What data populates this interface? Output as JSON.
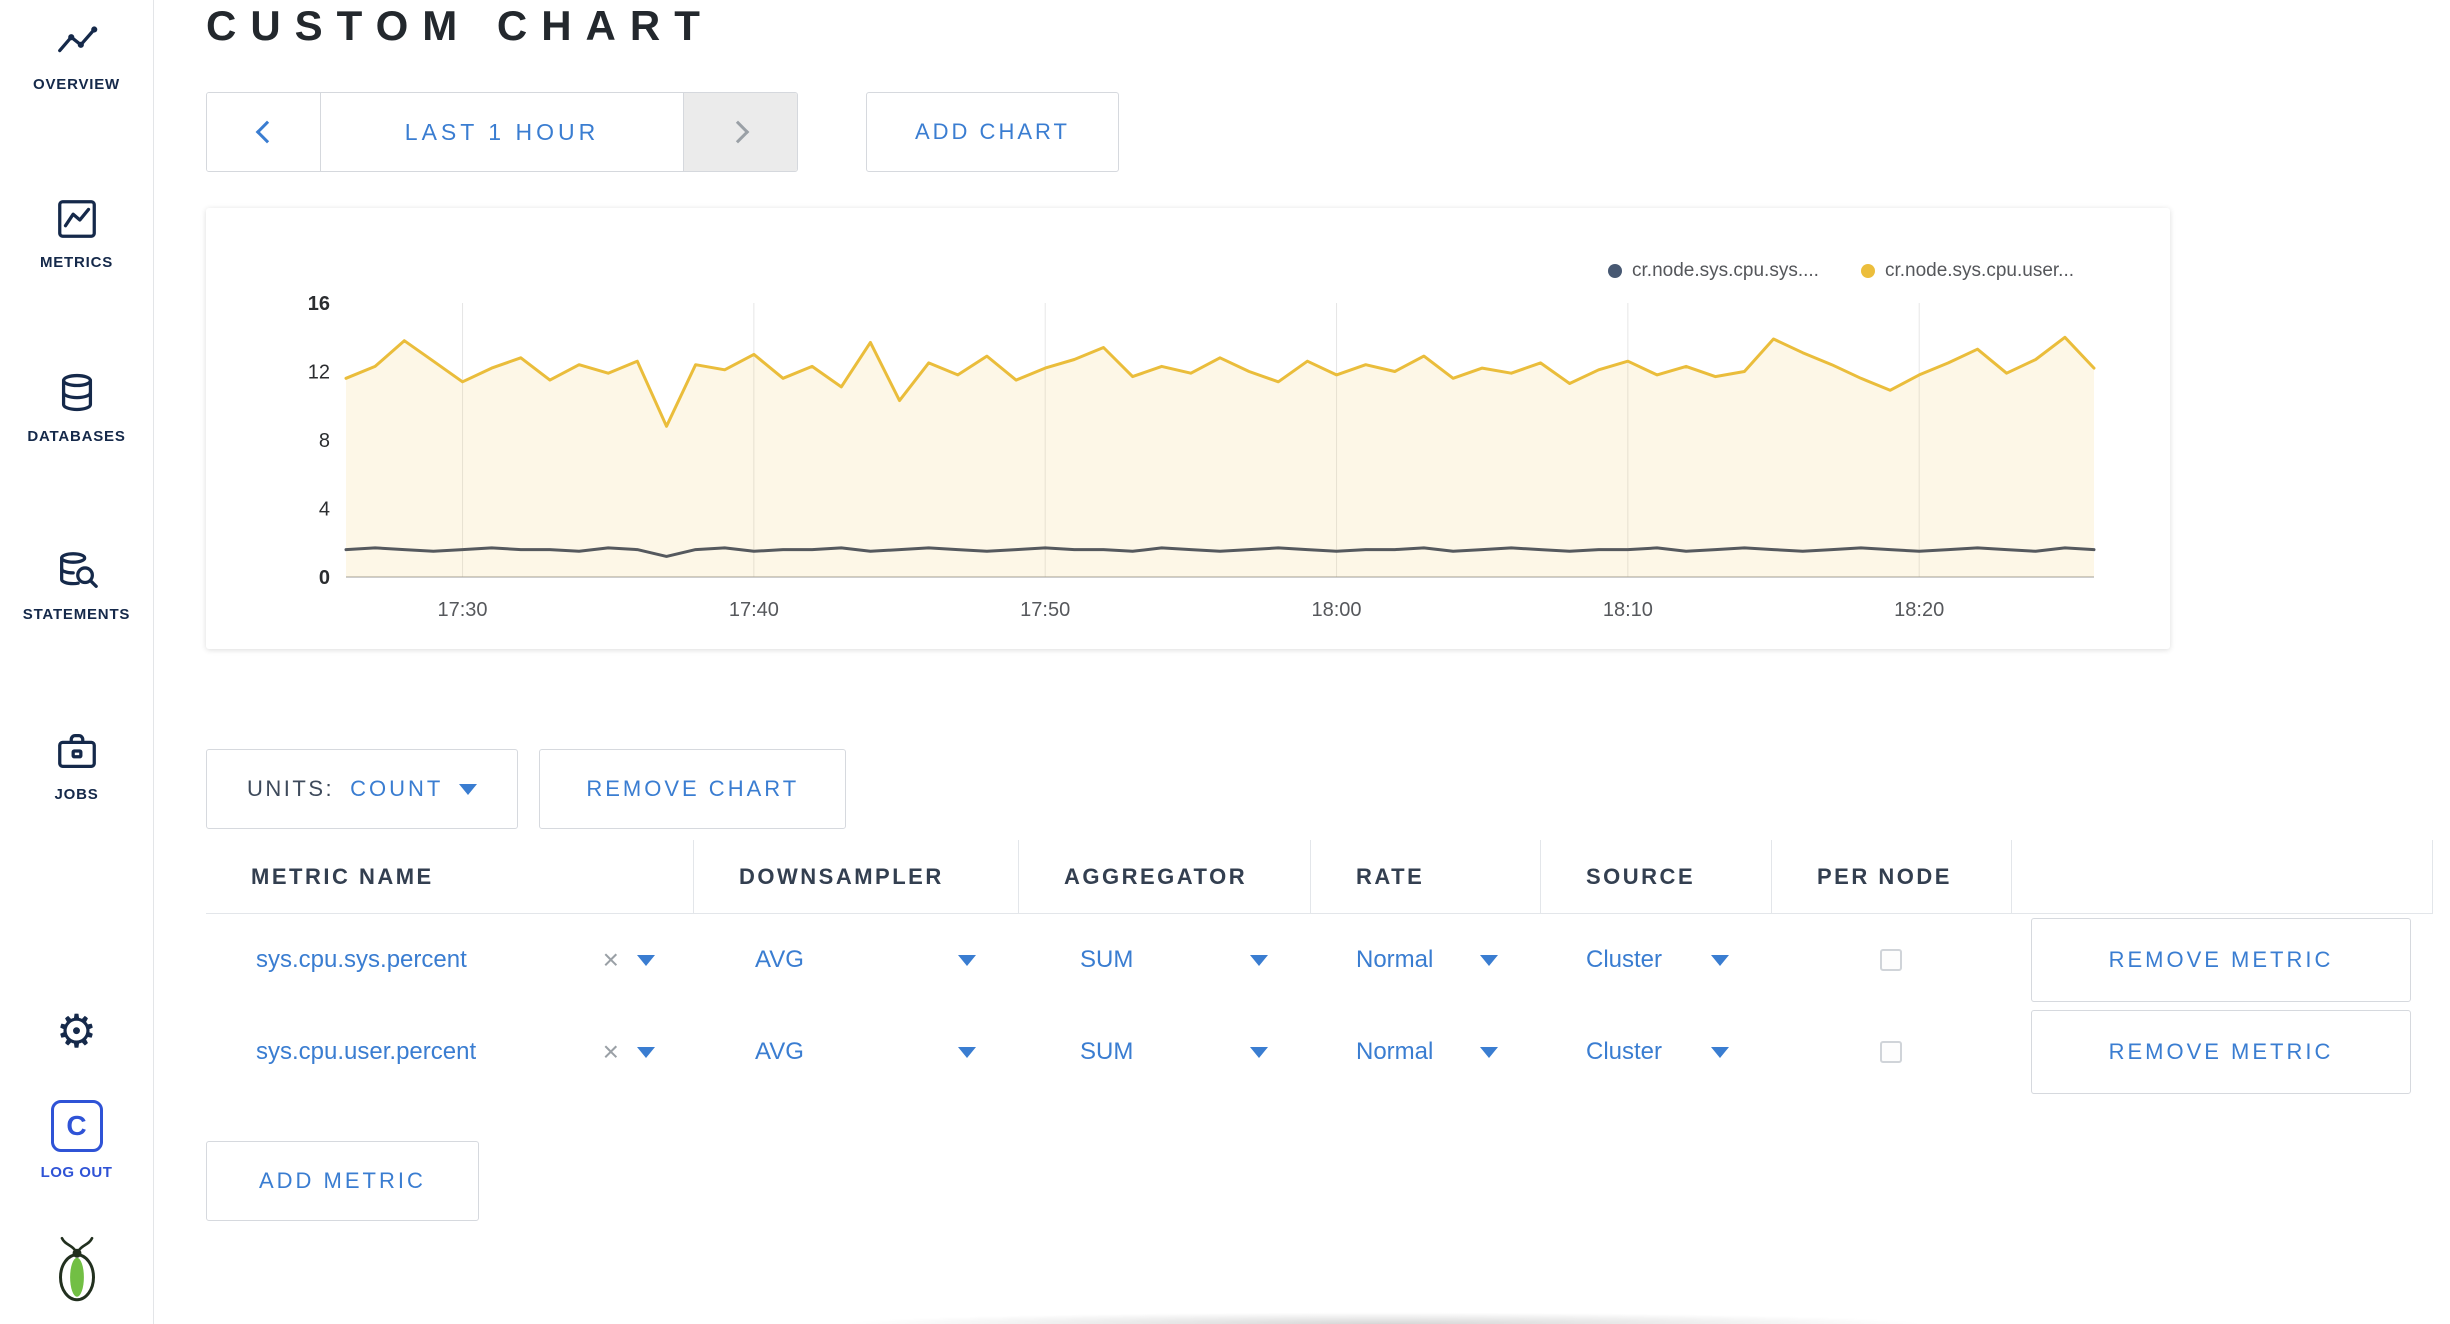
{
  "sidebar": {
    "items": [
      {
        "label": "OVERVIEW"
      },
      {
        "label": "METRICS"
      },
      {
        "label": "DATABASES"
      },
      {
        "label": "STATEMENTS"
      },
      {
        "label": "JOBS"
      }
    ],
    "logout": {
      "initial": "C",
      "label": "LOG OUT"
    }
  },
  "header": {
    "title": "CUSTOM CHART"
  },
  "timebar": {
    "range_label": "LAST 1 HOUR",
    "add_chart": "ADD CHART"
  },
  "icons": {
    "close": "×",
    "gear": "⚙"
  },
  "units": {
    "label": "UNITS:",
    "value": "COUNT"
  },
  "actions": {
    "remove_chart": "REMOVE CHART",
    "add_metric": "ADD METRIC",
    "remove_metric": "REMOVE METRIC"
  },
  "table": {
    "headers": [
      "METRIC NAME",
      "DOWNSAMPLER",
      "AGGREGATOR",
      "RATE",
      "SOURCE",
      "PER NODE",
      ""
    ],
    "rows": [
      {
        "metric": "sys.cpu.sys.percent",
        "downsampler": "AVG",
        "aggregator": "SUM",
        "rate": "Normal",
        "source": "Cluster",
        "per_node_checked": false
      },
      {
        "metric": "sys.cpu.user.percent",
        "downsampler": "AVG",
        "aggregator": "SUM",
        "rate": "Normal",
        "source": "Cluster",
        "per_node_checked": false
      }
    ]
  },
  "chart_data": {
    "type": "line",
    "title": "",
    "ylim": [
      0,
      16
    ],
    "y_ticks": [
      0,
      4,
      8,
      12,
      16
    ],
    "x_span_minutes": 60,
    "interval_minutes": 1,
    "x_ticks": [
      {
        "label": "17:30",
        "t": 4
      },
      {
        "label": "17:40",
        "t": 14
      },
      {
        "label": "17:50",
        "t": 24
      },
      {
        "label": "18:00",
        "t": 34
      },
      {
        "label": "18:10",
        "t": 44
      },
      {
        "label": "18:20",
        "t": 54
      }
    ],
    "legend": [
      {
        "name": "cr.node.sys.cpu.sys....",
        "color": "#475872"
      },
      {
        "name": "cr.node.sys.cpu.user...",
        "color": "#ecbe3c"
      }
    ],
    "series": [
      {
        "name": "cr.node.sys.cpu.user...",
        "color": "#eabd3b",
        "fill": "rgba(236,189,59,0.12)",
        "width": 3,
        "values": [
          11.6,
          12.3,
          13.8,
          12.6,
          11.4,
          12.2,
          12.8,
          11.5,
          12.4,
          11.9,
          12.6,
          8.8,
          12.4,
          12.1,
          13.0,
          11.6,
          12.3,
          11.1,
          13.7,
          10.3,
          12.5,
          11.8,
          12.9,
          11.5,
          12.2,
          12.7,
          13.4,
          11.7,
          12.3,
          11.9,
          12.8,
          12.0,
          11.4,
          12.6,
          11.8,
          12.4,
          12.0,
          12.9,
          11.6,
          12.2,
          11.9,
          12.5,
          11.3,
          12.1,
          12.6,
          11.8,
          12.3,
          11.7,
          12.0,
          13.9,
          13.1,
          12.4,
          11.6,
          10.9,
          11.8,
          12.5,
          13.3,
          11.9,
          12.7,
          14.0,
          12.2
        ]
      },
      {
        "name": "cr.node.sys.cpu.sys....",
        "color": "#55595e",
        "fill": "none",
        "width": 3,
        "values": [
          1.6,
          1.7,
          1.6,
          1.5,
          1.6,
          1.7,
          1.6,
          1.6,
          1.5,
          1.7,
          1.6,
          1.2,
          1.6,
          1.7,
          1.5,
          1.6,
          1.6,
          1.7,
          1.5,
          1.6,
          1.7,
          1.6,
          1.5,
          1.6,
          1.7,
          1.6,
          1.6,
          1.5,
          1.7,
          1.6,
          1.5,
          1.6,
          1.7,
          1.6,
          1.5,
          1.6,
          1.6,
          1.7,
          1.5,
          1.6,
          1.7,
          1.6,
          1.5,
          1.6,
          1.6,
          1.7,
          1.5,
          1.6,
          1.7,
          1.6,
          1.5,
          1.6,
          1.7,
          1.6,
          1.5,
          1.6,
          1.7,
          1.6,
          1.5,
          1.7,
          1.6
        ]
      }
    ]
  }
}
